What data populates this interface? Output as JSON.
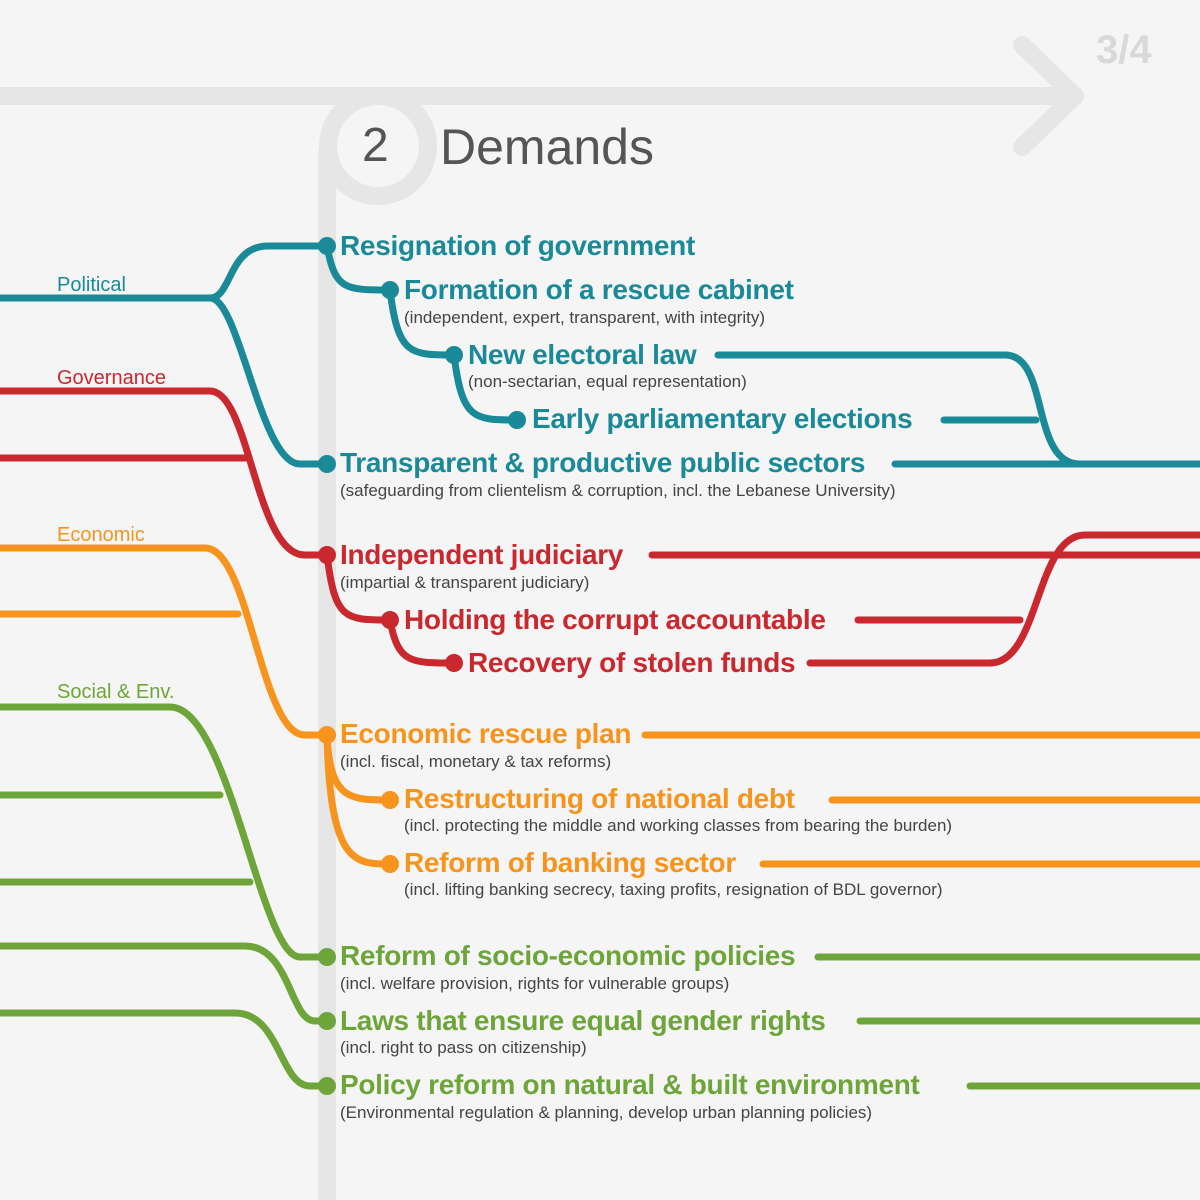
{
  "page_number": "3/4",
  "section": {
    "number": "2",
    "title": "Demands"
  },
  "colors": {
    "political": "#1a8a99",
    "governance": "#c8282e",
    "economic": "#f7941d",
    "social": "#6ea53a",
    "track": "#e6e6e6",
    "text_muted": "#555555"
  },
  "categories": [
    {
      "id": "political",
      "label": "Political"
    },
    {
      "id": "governance",
      "label": "Governance"
    },
    {
      "id": "economic",
      "label": "Economic"
    },
    {
      "id": "social",
      "label": "Social & Env."
    }
  ],
  "demands": [
    {
      "category": "political",
      "title": "Resignation of government",
      "subtitle": ""
    },
    {
      "category": "political",
      "title": "Formation of a rescue cabinet",
      "subtitle": "(independent, expert, transparent, with integrity)"
    },
    {
      "category": "political",
      "title": "New electoral law",
      "subtitle": "(non-sectarian, equal representation)"
    },
    {
      "category": "political",
      "title": "Early parliamentary elections",
      "subtitle": ""
    },
    {
      "category": "political",
      "title": "Transparent & productive public sectors",
      "subtitle": "(safeguarding from clientelism & corruption, incl. the Lebanese University)"
    },
    {
      "category": "governance",
      "title": "Independent judiciary",
      "subtitle": "(impartial & transparent judiciary)"
    },
    {
      "category": "governance",
      "title": "Holding the corrupt accountable",
      "subtitle": ""
    },
    {
      "category": "governance",
      "title": "Recovery of stolen funds",
      "subtitle": ""
    },
    {
      "category": "economic",
      "title": "Economic rescue plan",
      "subtitle": "(incl. fiscal, monetary & tax reforms)"
    },
    {
      "category": "economic",
      "title": "Restructuring of national debt",
      "subtitle": "(incl. protecting the middle and working classes from bearing the burden)"
    },
    {
      "category": "economic",
      "title": "Reform of banking sector",
      "subtitle": "(incl. lifting banking secrecy, taxing profits, resignation of BDL governor)"
    },
    {
      "category": "social",
      "title": "Reform of socio-economic policies",
      "subtitle": "(incl. welfare provision, rights for vulnerable groups)"
    },
    {
      "category": "social",
      "title": "Laws that ensure equal gender rights",
      "subtitle": "(incl. right to pass on citizenship)"
    },
    {
      "category": "social",
      "title": "Policy reform on natural & built environment",
      "subtitle": "(Environmental regulation & planning, develop urban planning policies)"
    }
  ]
}
